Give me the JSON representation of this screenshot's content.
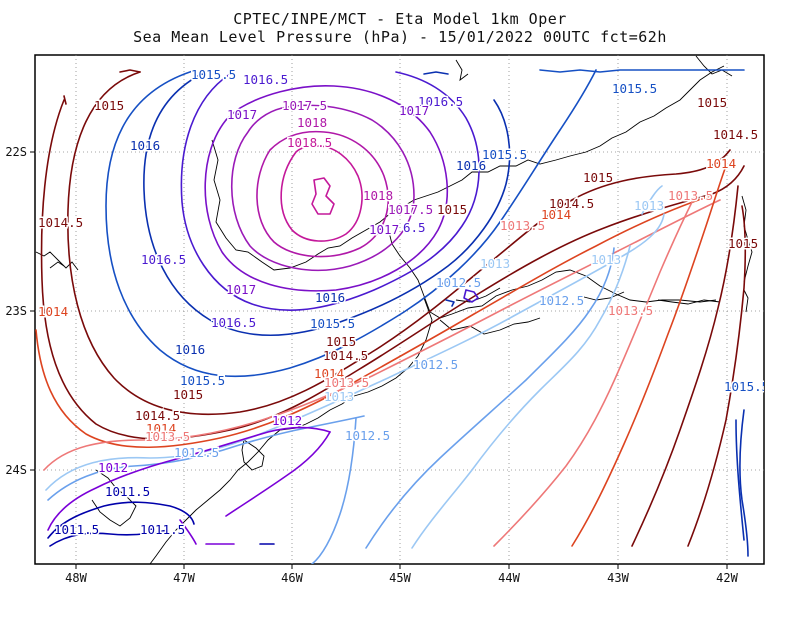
{
  "title": {
    "line1": "CPTEC/INPE/MCT -  Eta Model 1km Oper",
    "line2": "Sea Mean Level Pressure (hPa) - 15/01/2022 00UTC fct=62h"
  },
  "axes": {
    "x_ticks": [
      "48W",
      "47W",
      "46W",
      "45W",
      "44W",
      "43W",
      "42W"
    ],
    "y_ticks": [
      "22S",
      "23S",
      "24S"
    ]
  },
  "colors": {
    "c1011_5": "#0000aa",
    "c1012": "#7a00d8",
    "c1012_5": "#6aa0ec",
    "c1013": "#9cc8f4",
    "c1013_5": "#ee7878",
    "c1014": "#dd4420",
    "c1014_5": "#7a0a0a",
    "c1015": "#7a0a0a",
    "c1015_5": "#1650c4",
    "c1016": "#0a30b0",
    "c1016_5": "#4a1ad0",
    "c1017": "#7a10c8",
    "c1017_5": "#9a1ab8",
    "c1018": "#b018a8",
    "c1018_5": "#c4189a"
  },
  "contour_labels": [
    {
      "text": "1015.5",
      "color": "#1650c4"
    },
    {
      "text": "1016.5",
      "color": "#4a1ad0"
    },
    {
      "text": "1015",
      "color": "#7a0a0a"
    },
    {
      "text": "1017.5",
      "color": "#9a1ab8"
    },
    {
      "text": "1017",
      "color": "#7a10c8"
    },
    {
      "text": "1016.5",
      "color": "#4a1ad0"
    },
    {
      "text": "1015.5",
      "color": "#1650c4"
    },
    {
      "text": "1015",
      "color": "#7a0a0a"
    },
    {
      "text": "1017",
      "color": "#7a10c8"
    },
    {
      "text": "1018",
      "color": "#b018a8"
    },
    {
      "text": "1016",
      "color": "#0a30b0"
    },
    {
      "text": "1018.5",
      "color": "#c4189a"
    },
    {
      "text": "1015.5",
      "color": "#1650c4"
    },
    {
      "text": "1014.5",
      "color": "#7a0a0a"
    },
    {
      "text": "1014",
      "color": "#dd4420"
    },
    {
      "text": "1016",
      "color": "#0a30b0"
    },
    {
      "text": "1015",
      "color": "#7a0a0a"
    },
    {
      "text": "1018",
      "color": "#b018a8"
    },
    {
      "text": "1014.5",
      "color": "#7a0a0a"
    },
    {
      "text": "1013.5",
      "color": "#ee7878"
    },
    {
      "text": "1017.5",
      "color": "#9a1ab8"
    },
    {
      "text": "1015",
      "color": "#7a0a0a"
    },
    {
      "text": "1014",
      "color": "#dd4420"
    },
    {
      "text": "1013",
      "color": "#9cc8f4"
    },
    {
      "text": "1014.5",
      "color": "#7a0a0a"
    },
    {
      "text": "1017",
      "color": "#7a10c8"
    },
    {
      "text": "6.5",
      "color": "#4a1ad0"
    },
    {
      "text": "1013.5",
      "color": "#ee7878"
    },
    {
      "text": "1015",
      "color": "#7a0a0a"
    },
    {
      "text": "1016.5",
      "color": "#4a1ad0"
    },
    {
      "text": "1013",
      "color": "#9cc8f4"
    },
    {
      "text": "1013",
      "color": "#9cc8f4"
    },
    {
      "text": "1017",
      "color": "#7a10c8"
    },
    {
      "text": "1012.5",
      "color": "#6aa0ec"
    },
    {
      "text": "1014",
      "color": "#dd4420"
    },
    {
      "text": "1016",
      "color": "#0a30b0"
    },
    {
      "text": "1012.5",
      "color": "#6aa0ec"
    },
    {
      "text": "1013.5",
      "color": "#ee7878"
    },
    {
      "text": "1016.5",
      "color": "#4a1ad0"
    },
    {
      "text": "1015.5",
      "color": "#1650c4"
    },
    {
      "text": "1015",
      "color": "#7a0a0a"
    },
    {
      "text": "1016",
      "color": "#0a30b0"
    },
    {
      "text": "1014.5",
      "color": "#7a0a0a"
    },
    {
      "text": "1012.5",
      "color": "#6aa0ec"
    },
    {
      "text": "1014",
      "color": "#dd4420"
    },
    {
      "text": "1015.5",
      "color": "#1650c4"
    },
    {
      "text": "1013.5",
      "color": "#ee7878"
    },
    {
      "text": "1015",
      "color": "#7a0a0a"
    },
    {
      "text": "1013",
      "color": "#9cc8f4"
    },
    {
      "text": "1014.5",
      "color": "#7a0a0a"
    },
    {
      "text": "1014",
      "color": "#dd4420"
    },
    {
      "text": "1015.5",
      "color": "#1650c4"
    },
    {
      "text": "1012",
      "color": "#7a00d8"
    },
    {
      "text": "1013.5",
      "color": "#ee7878"
    },
    {
      "text": "1012.5",
      "color": "#6aa0ec"
    },
    {
      "text": "1012.5",
      "color": "#6aa0ec"
    },
    {
      "text": "1012",
      "color": "#7a00d8"
    },
    {
      "text": "1011.5",
      "color": "#0000aa"
    },
    {
      "text": "1011.5",
      "color": "#0000aa"
    },
    {
      "text": "1011.5",
      "color": "#0000aa"
    }
  ]
}
